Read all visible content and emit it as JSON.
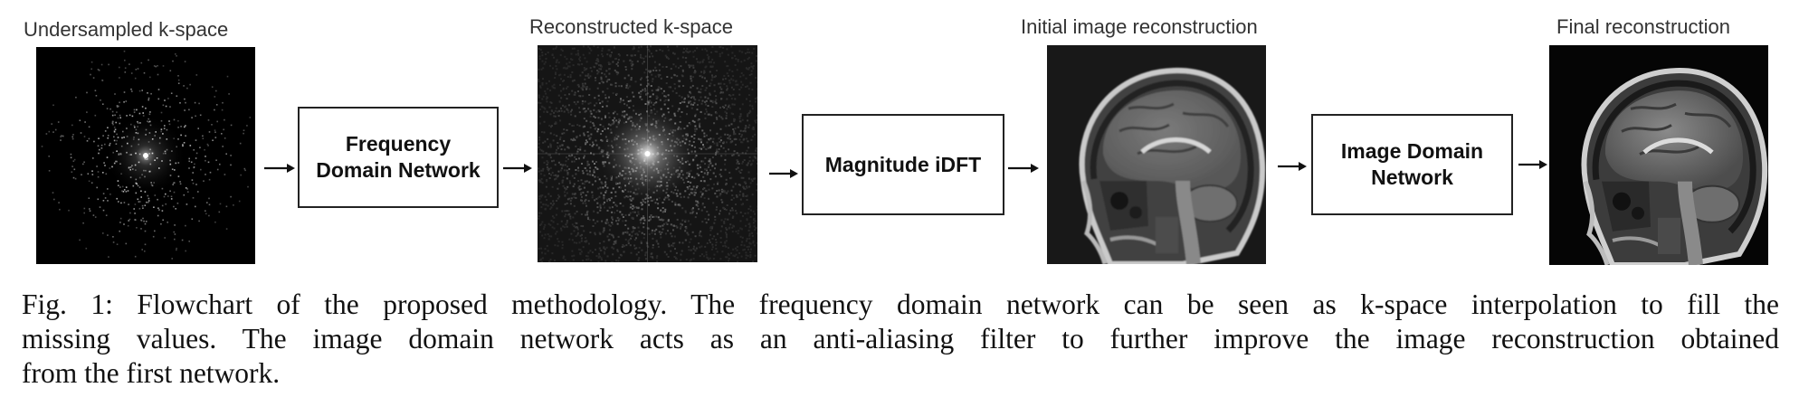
{
  "figure": {
    "panels": {
      "undersampled": {
        "label": "Undersampled k-space"
      },
      "reconstructed": {
        "label": "Reconstructed k-space"
      },
      "initial": {
        "label": "Initial image reconstruction"
      },
      "final": {
        "label": "Final reconstruction"
      }
    },
    "boxes": {
      "frequency": {
        "line1": "Frequency",
        "line2": "Domain Network"
      },
      "idft": {
        "label": "Magnitude iDFT"
      },
      "image_domain": {
        "line1": "Image Domain",
        "line2": "Network"
      }
    }
  },
  "caption": {
    "line1": "Fig. 1: Flowchart of the proposed methodology. The frequency domain network can be seen as k-space interpolation to fill the",
    "line2": "missing values. The image domain network acts as an anti-aliasing filter to further improve the image reconstruction obtained",
    "line3": "from the first network."
  }
}
